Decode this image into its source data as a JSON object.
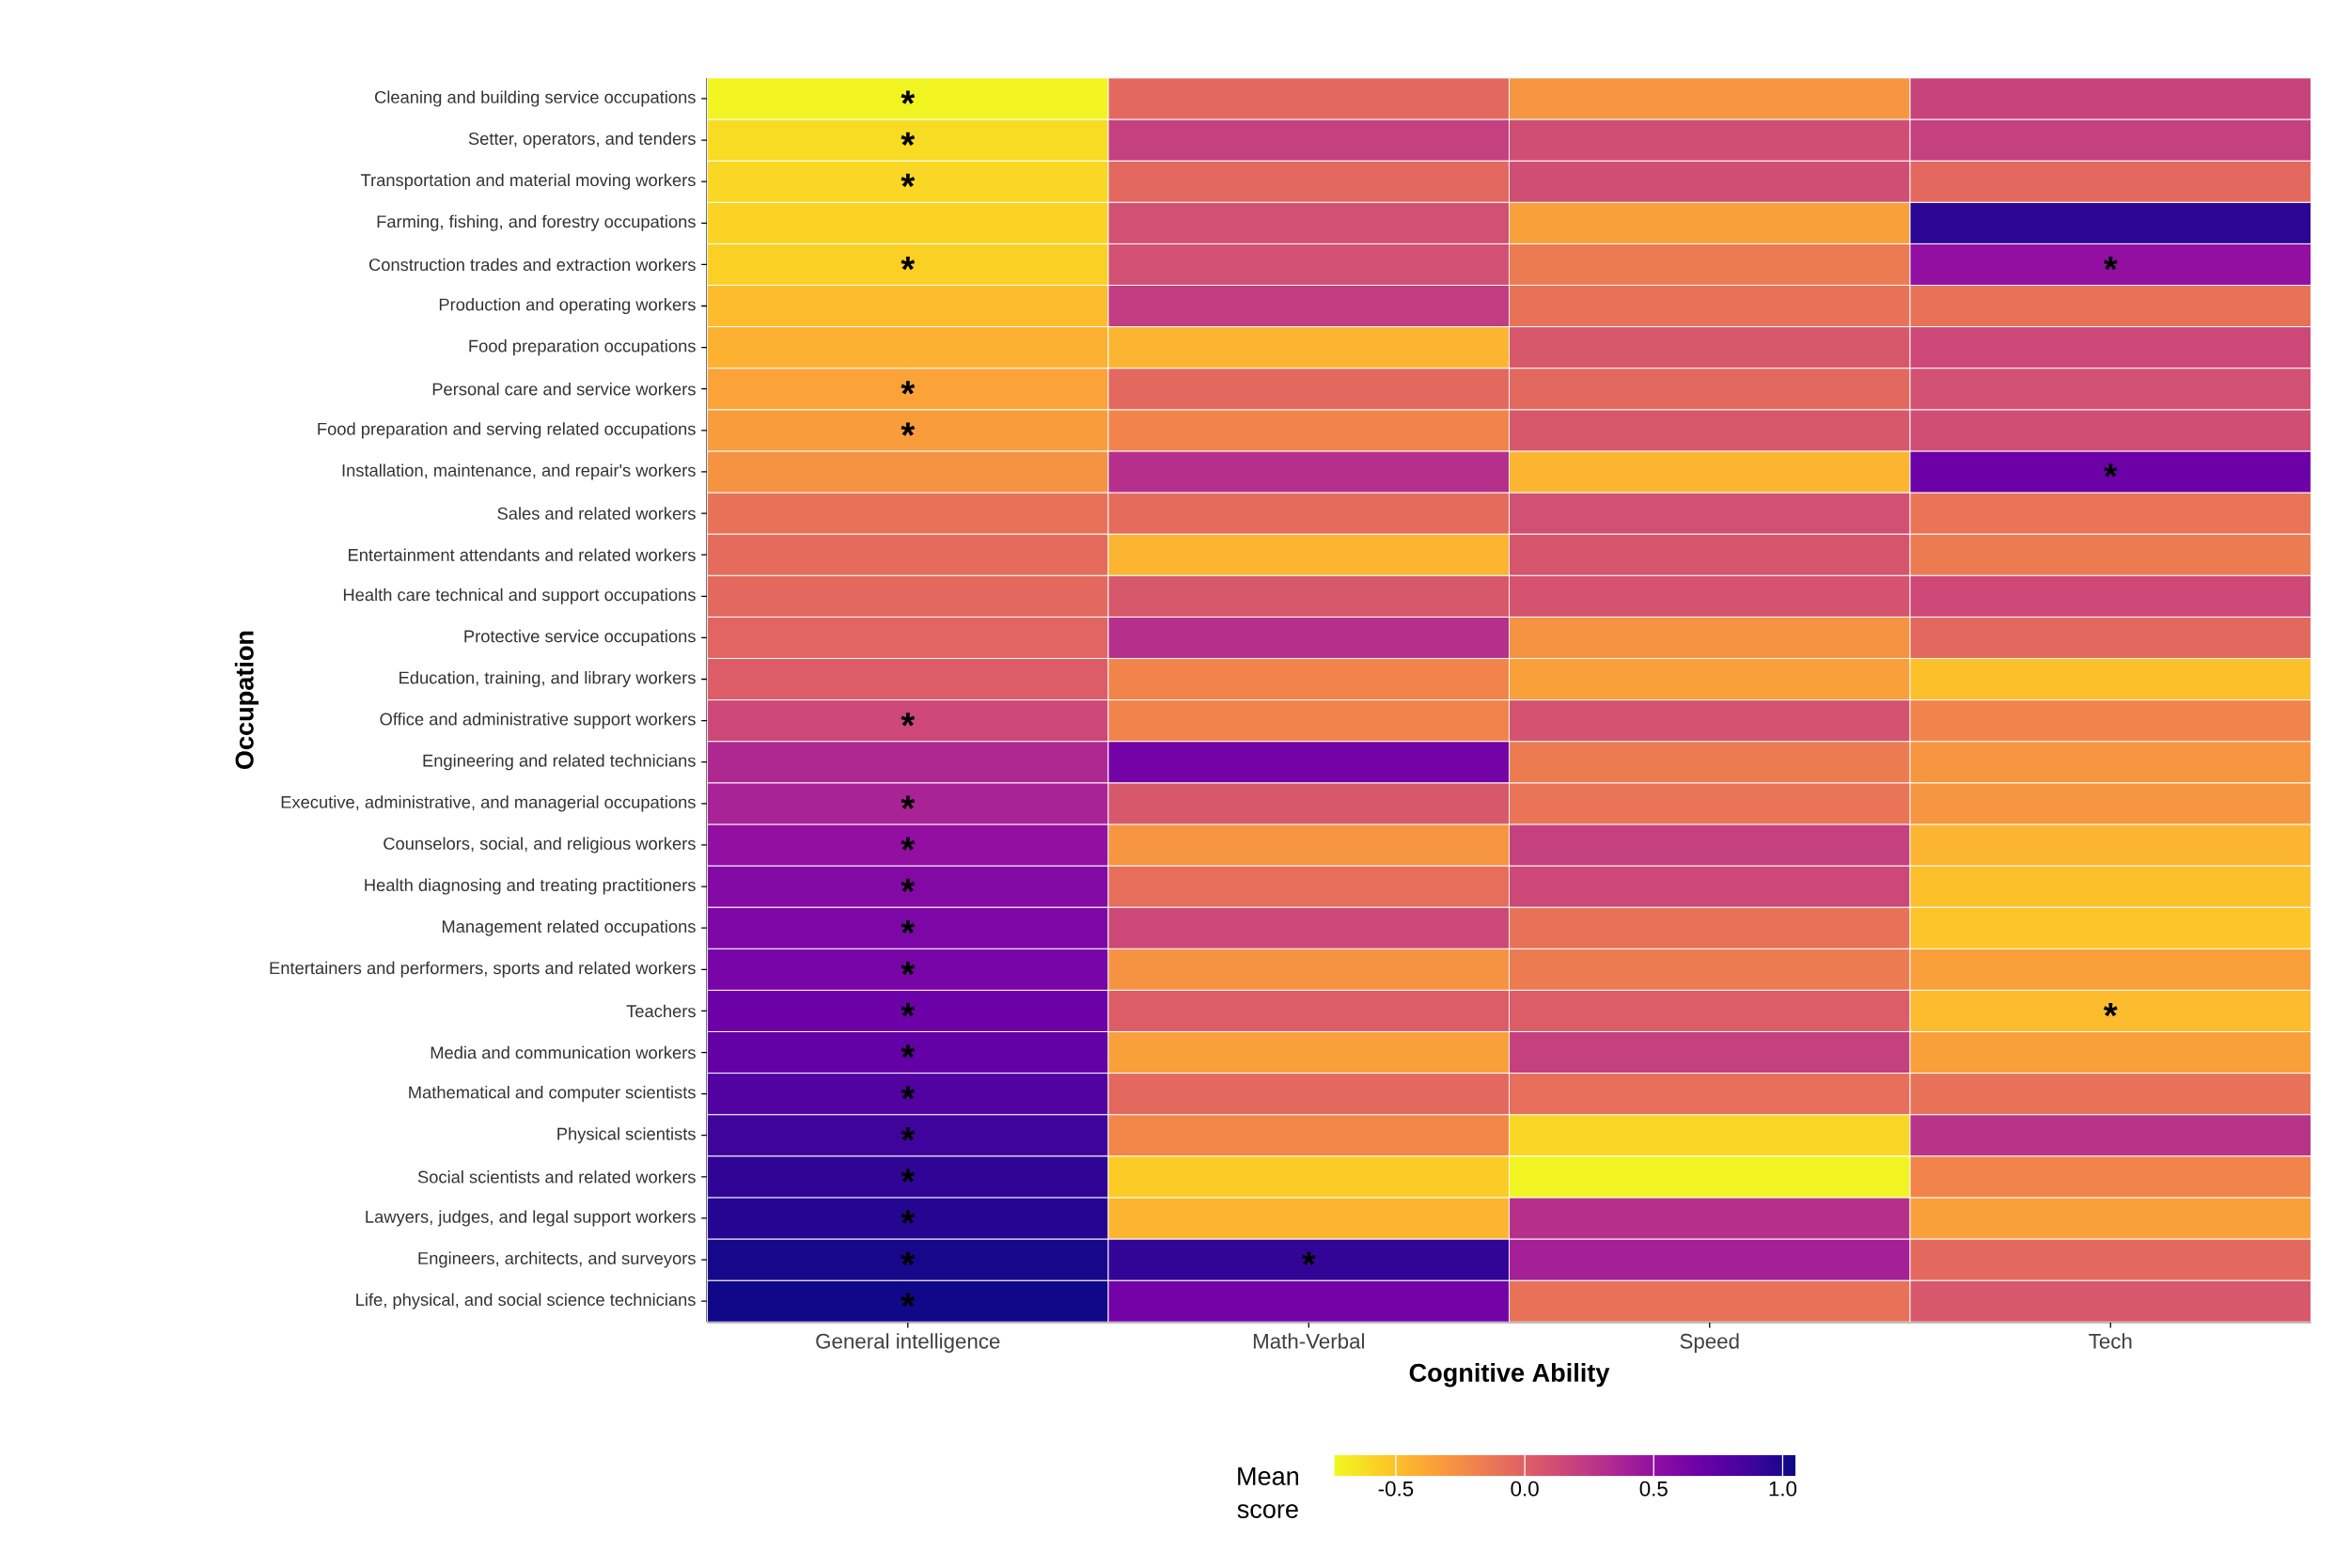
{
  "chart_data": {
    "type": "heatmap",
    "xlabel": "Cognitive Ability",
    "ylabel": "Occupation",
    "clabel": "Mean score",
    "categories": [
      "General intelligence",
      "Math-Verbal",
      "Speed",
      "Tech"
    ],
    "y_categories": [
      "Cleaning and building service occupations",
      "Setter, operators, and tenders",
      "Transportation and material moving workers",
      "Farming, fishing, and forestry occupations",
      "Construction trades and extraction workers",
      "Production and operating workers",
      "Food preparation occupations",
      "Personal care and service workers",
      "Food preparation and serving related occupations",
      "Installation, maintenance, and repair's workers",
      "Sales and related workers",
      "Entertainment attendants and related workers",
      "Health care technical and support occupations",
      "Protective service occupations",
      "Education, training, and library workers",
      "Office and administrative support workers",
      "Engineering and related technicians",
      "Executive, administrative, and managerial occupations",
      "Counselors, social, and religious workers",
      "Health diagnosing and treating practitioners",
      "Management related occupations",
      "Entertainers and performers, sports and related workers",
      "Teachers",
      "Media and communication workers",
      "Mathematical and computer scientists",
      "Physical scientists",
      "Social scientists and related workers",
      "Lawyers, judges, and legal support workers",
      "Engineers, architects, and surveyors",
      "Life, physical, and social science technicians"
    ],
    "cells": [
      [
        -0.72,
        -0.05,
        -0.3,
        0.18
      ],
      [
        -0.62,
        0.2,
        0.12,
        0.2
      ],
      [
        -0.6,
        -0.05,
        0.12,
        -0.05
      ],
      [
        -0.58,
        0.1,
        -0.35,
        0.95
      ],
      [
        -0.57,
        0.1,
        -0.15,
        0.5
      ],
      [
        -0.48,
        0.22,
        -0.1,
        -0.1
      ],
      [
        -0.43,
        -0.45,
        0.05,
        0.15
      ],
      [
        -0.36,
        -0.05,
        -0.05,
        0.1
      ],
      [
        -0.33,
        -0.2,
        0.05,
        0.12
      ],
      [
        -0.28,
        0.3,
        -0.45,
        0.68
      ],
      [
        -0.1,
        -0.07,
        0.1,
        -0.12
      ],
      [
        -0.07,
        -0.45,
        0.07,
        -0.15
      ],
      [
        -0.05,
        0.05,
        0.08,
        0.15
      ],
      [
        -0.03,
        0.3,
        -0.28,
        -0.05
      ],
      [
        0.02,
        -0.2,
        -0.35,
        -0.5
      ],
      [
        0.15,
        -0.2,
        0.08,
        -0.2
      ],
      [
        0.35,
        0.65,
        -0.15,
        -0.3
      ],
      [
        0.38,
        0.05,
        -0.12,
        -0.3
      ],
      [
        0.5,
        -0.3,
        0.2,
        -0.45
      ],
      [
        0.57,
        -0.08,
        0.15,
        -0.5
      ],
      [
        0.6,
        0.15,
        -0.1,
        -0.52
      ],
      [
        0.63,
        -0.28,
        -0.15,
        -0.35
      ],
      [
        0.68,
        0.02,
        0.02,
        -0.48
      ],
      [
        0.72,
        -0.35,
        0.2,
        -0.35
      ],
      [
        0.8,
        -0.05,
        -0.08,
        -0.1
      ],
      [
        0.88,
        -0.22,
        -0.6,
        0.28
      ],
      [
        0.93,
        -0.55,
        -0.72,
        -0.2
      ],
      [
        0.97,
        -0.45,
        0.3,
        -0.35
      ],
      [
        1.02,
        0.92,
        0.4,
        -0.05
      ],
      [
        1.04,
        0.65,
        -0.1,
        0.05
      ]
    ],
    "cell_labels": [
      [
        "*",
        null,
        null,
        null
      ],
      [
        "*",
        null,
        null,
        null
      ],
      [
        "*",
        null,
        null,
        null
      ],
      [
        null,
        null,
        null,
        null
      ],
      [
        "*",
        null,
        null,
        "*"
      ],
      [
        null,
        null,
        null,
        null
      ],
      [
        null,
        null,
        null,
        null
      ],
      [
        "*",
        null,
        null,
        null
      ],
      [
        "*",
        null,
        null,
        null
      ],
      [
        null,
        null,
        null,
        "*"
      ],
      [
        null,
        null,
        null,
        null
      ],
      [
        null,
        null,
        null,
        null
      ],
      [
        null,
        null,
        null,
        null
      ],
      [
        null,
        null,
        null,
        null
      ],
      [
        null,
        null,
        null,
        null
      ],
      [
        "*",
        null,
        null,
        null
      ],
      [
        null,
        null,
        null,
        null
      ],
      [
        "*",
        null,
        null,
        null
      ],
      [
        "*",
        null,
        null,
        null
      ],
      [
        "*",
        null,
        null,
        null
      ],
      [
        "*",
        null,
        null,
        null
      ],
      [
        "*",
        null,
        null,
        null
      ],
      [
        "*",
        null,
        null,
        "*"
      ],
      [
        "*",
        null,
        null,
        null
      ],
      [
        "*",
        null,
        null,
        null
      ],
      [
        "*",
        null,
        null,
        null
      ],
      [
        "*",
        null,
        null,
        null
      ],
      [
        "*",
        null,
        null,
        null
      ],
      [
        "*",
        "*",
        null,
        null
      ],
      [
        "*",
        null,
        null,
        null
      ]
    ],
    "clim": [
      -0.74,
      1.05
    ],
    "cticks": [
      -0.5,
      {
        "value": 0,
        "label": "0.0"
      },
      0.5,
      {
        "value": 1,
        "label": "1.0"
      }
    ]
  }
}
